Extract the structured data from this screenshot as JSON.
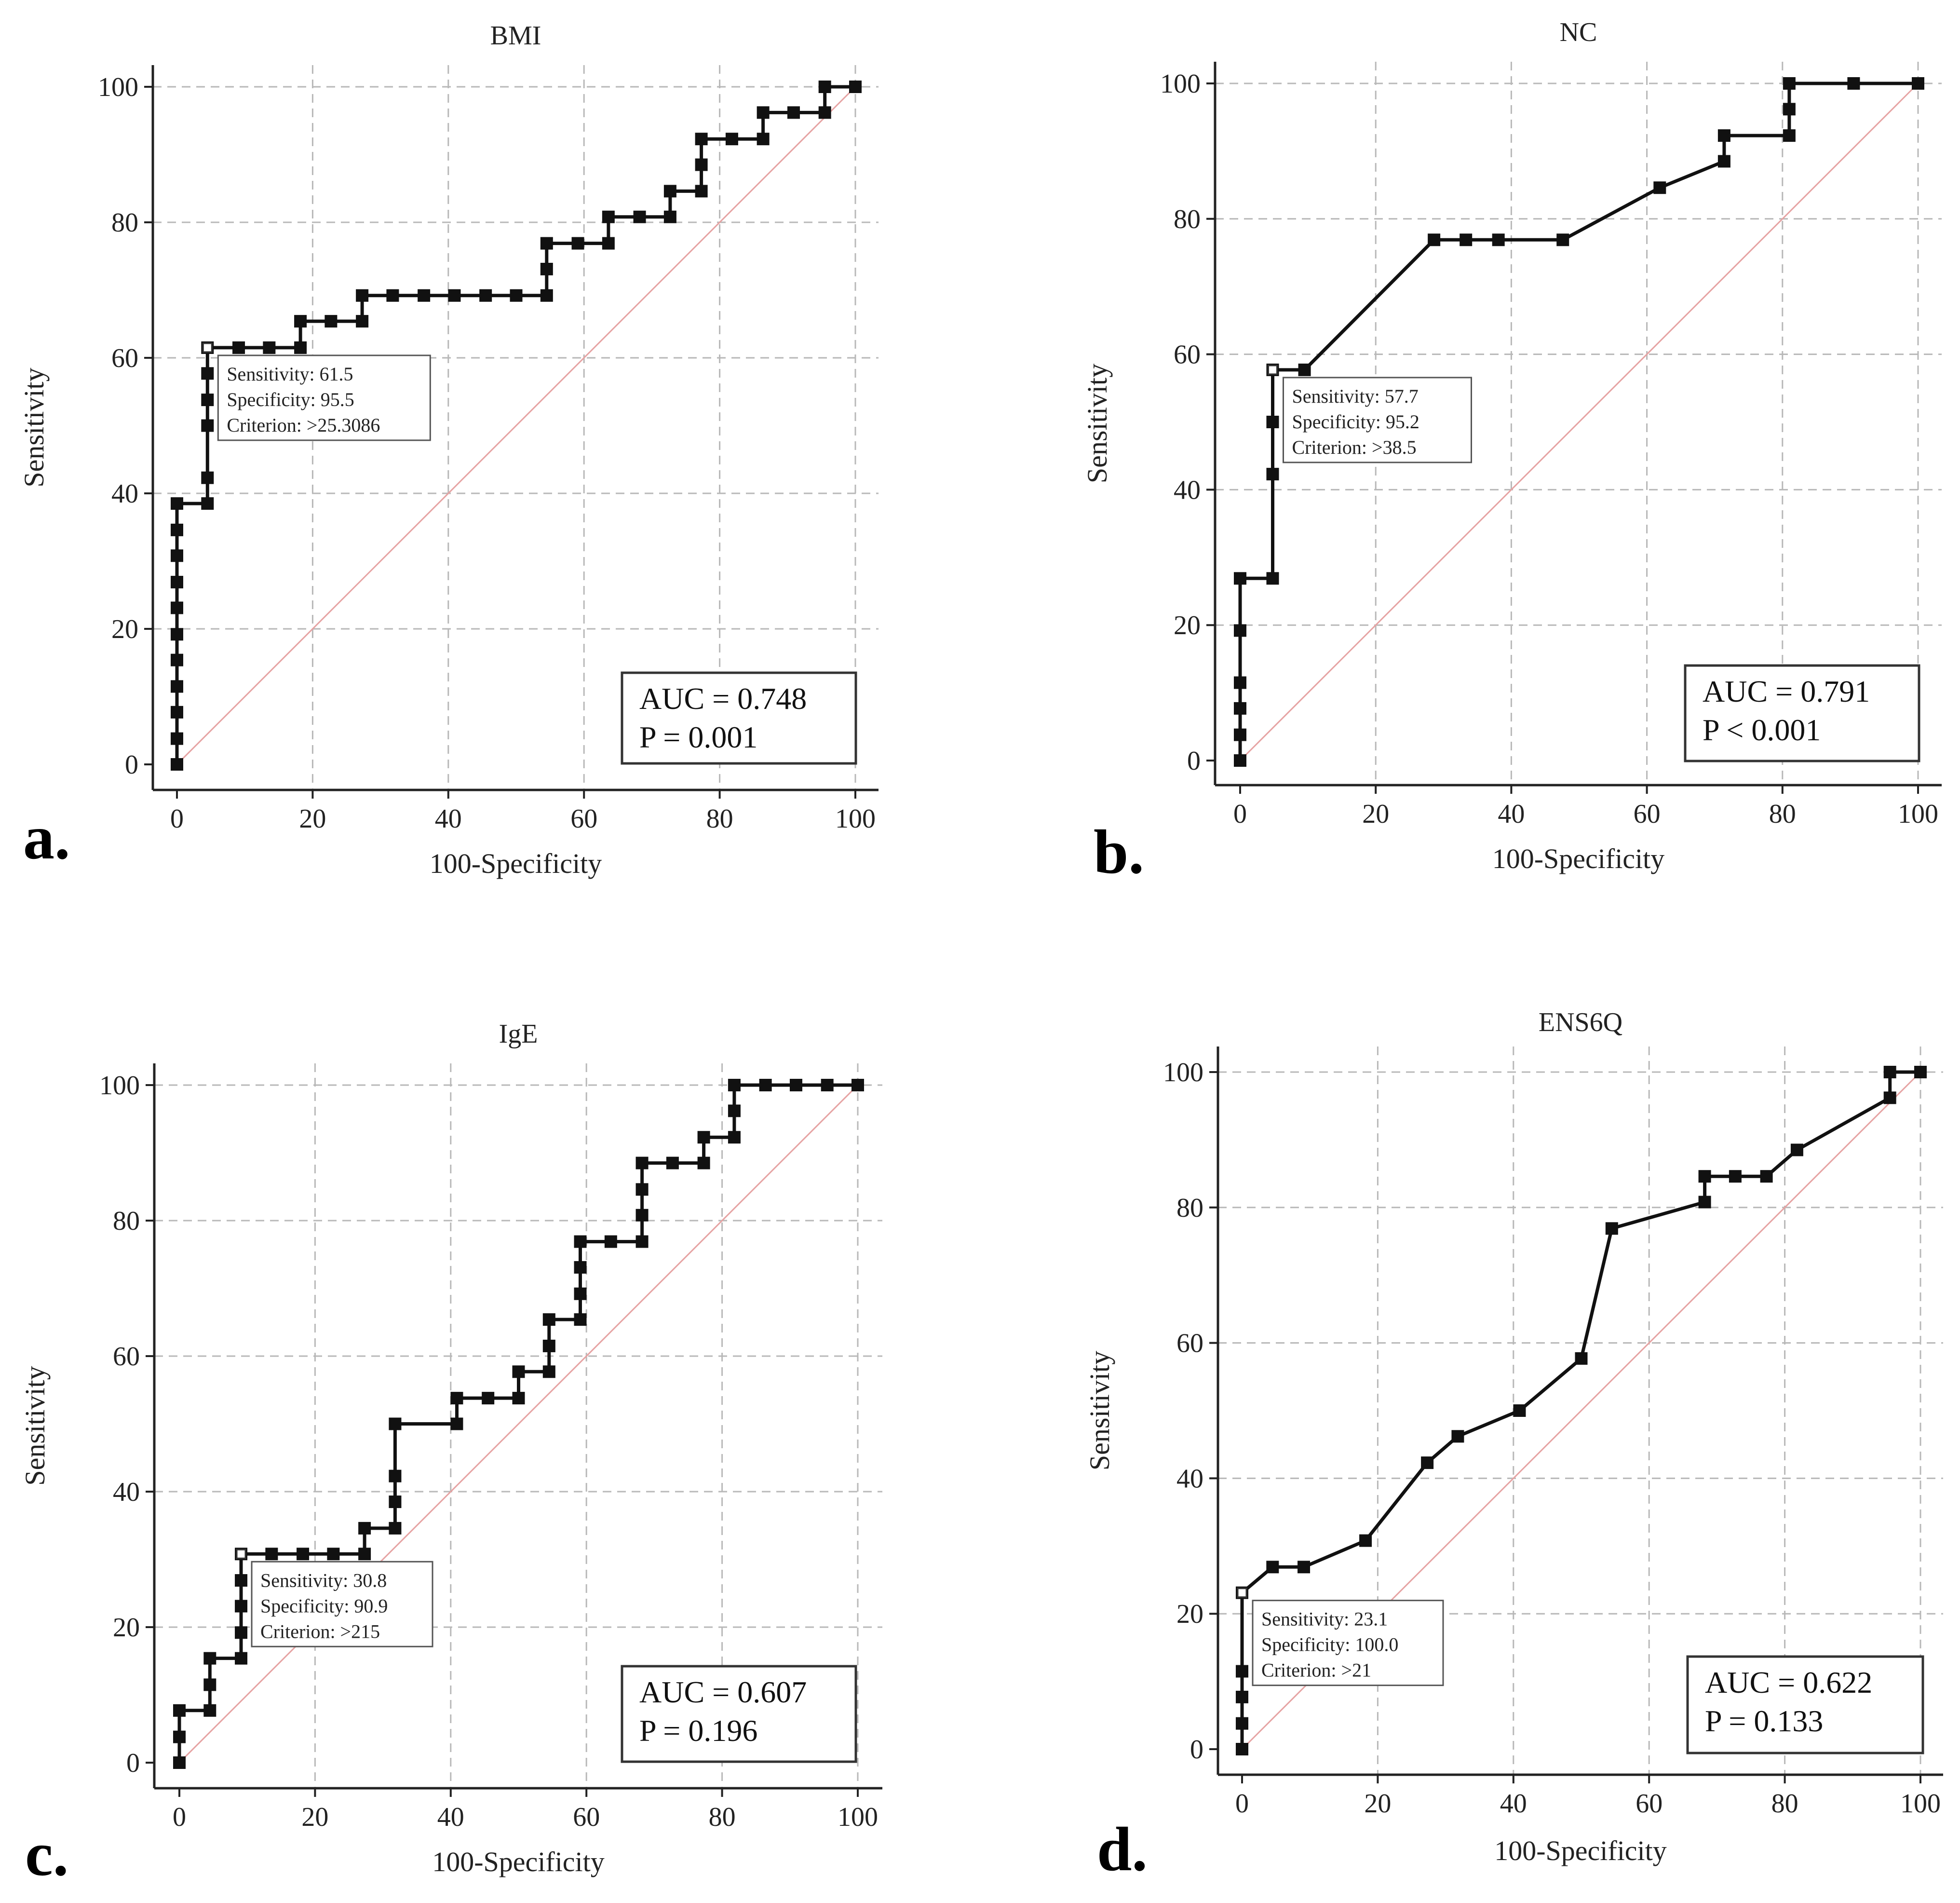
{
  "chart_data": [
    {
      "id": "a",
      "type": "line",
      "panel_label": "a.",
      "title": "BMI",
      "xlabel": "100-Specificity",
      "ylabel": "Sensitivity",
      "xlim": [
        0,
        100
      ],
      "ylim": [
        0,
        100
      ],
      "xticks": [
        0,
        20,
        40,
        60,
        80,
        100
      ],
      "yticks": [
        0,
        20,
        40,
        60,
        80,
        100
      ],
      "grid": true,
      "roc_points": [
        [
          0,
          0
        ],
        [
          0,
          3.8
        ],
        [
          0,
          7.7
        ],
        [
          0,
          11.5
        ],
        [
          0,
          15.4
        ],
        [
          0,
          19.2
        ],
        [
          0,
          23.1
        ],
        [
          0,
          26.9
        ],
        [
          0,
          30.8
        ],
        [
          0,
          34.6
        ],
        [
          0,
          38.5
        ],
        [
          4.5,
          38.5
        ],
        [
          4.5,
          42.3
        ],
        [
          4.5,
          50
        ],
        [
          4.5,
          53.8
        ],
        [
          4.5,
          57.7
        ],
        [
          4.5,
          61.5
        ],
        [
          9.1,
          61.5
        ],
        [
          13.6,
          61.5
        ],
        [
          18.2,
          61.5
        ],
        [
          18.2,
          65.4
        ],
        [
          22.7,
          65.4
        ],
        [
          27.3,
          65.4
        ],
        [
          27.3,
          69.2
        ],
        [
          31.8,
          69.2
        ],
        [
          36.4,
          69.2
        ],
        [
          40.9,
          69.2
        ],
        [
          45.5,
          69.2
        ],
        [
          50,
          69.2
        ],
        [
          54.5,
          69.2
        ],
        [
          54.5,
          73.1
        ],
        [
          54.5,
          76.9
        ],
        [
          59.1,
          76.9
        ],
        [
          63.6,
          76.9
        ],
        [
          63.6,
          80.8
        ],
        [
          68.2,
          80.8
        ],
        [
          72.7,
          80.8
        ],
        [
          72.7,
          84.6
        ],
        [
          77.3,
          84.6
        ],
        [
          77.3,
          88.5
        ],
        [
          77.3,
          92.3
        ],
        [
          81.8,
          92.3
        ],
        [
          86.4,
          92.3
        ],
        [
          86.4,
          96.2
        ],
        [
          90.9,
          96.2
        ],
        [
          95.5,
          96.2
        ],
        [
          95.5,
          100
        ],
        [
          100,
          100
        ]
      ],
      "annotation": {
        "point": [
          4.5,
          61.5
        ],
        "lines": [
          "Sensitivity: 61.5",
          "Specificity: 95.5",
          "Criterion: >25.3086"
        ]
      },
      "stats": [
        "AUC = 0.748",
        "P = 0.001"
      ]
    },
    {
      "id": "b",
      "type": "line",
      "panel_label": "b.",
      "title": "NC",
      "xlabel": "100-Specificity",
      "ylabel": "Sensitivity",
      "xlim": [
        0,
        100
      ],
      "ylim": [
        0,
        100
      ],
      "xticks": [
        0,
        20,
        40,
        60,
        80,
        100
      ],
      "yticks": [
        0,
        20,
        40,
        60,
        80,
        100
      ],
      "grid": true,
      "roc_points": [
        [
          0,
          0
        ],
        [
          0,
          3.8
        ],
        [
          0,
          7.7
        ],
        [
          0,
          11.5
        ],
        [
          0,
          19.2
        ],
        [
          0,
          26.9
        ],
        [
          4.8,
          26.9
        ],
        [
          4.8,
          42.3
        ],
        [
          4.8,
          50
        ],
        [
          4.8,
          57.7
        ],
        [
          9.5,
          57.7
        ],
        [
          28.6,
          76.9
        ],
        [
          33.3,
          76.9
        ],
        [
          38.1,
          76.9
        ],
        [
          47.6,
          76.9
        ],
        [
          61.9,
          84.6
        ],
        [
          71.4,
          88.5
        ],
        [
          71.4,
          92.3
        ],
        [
          81,
          92.3
        ],
        [
          81,
          96.2
        ],
        [
          81,
          100
        ],
        [
          90.5,
          100
        ],
        [
          100,
          100
        ]
      ],
      "annotation": {
        "point": [
          4.8,
          57.7
        ],
        "lines": [
          "Sensitivity: 57.7",
          "Specificity: 95.2",
          "Criterion: >38.5"
        ]
      },
      "stats": [
        "AUC = 0.791",
        "P < 0.001"
      ]
    },
    {
      "id": "c",
      "type": "line",
      "panel_label": "c.",
      "title": "IgE",
      "xlabel": "100-Specificity",
      "ylabel": "Sensitivity",
      "xlim": [
        0,
        100
      ],
      "ylim": [
        0,
        100
      ],
      "xticks": [
        0,
        20,
        40,
        60,
        80,
        100
      ],
      "yticks": [
        0,
        20,
        40,
        60,
        80,
        100
      ],
      "grid": true,
      "roc_points": [
        [
          0,
          0
        ],
        [
          0,
          3.8
        ],
        [
          0,
          7.7
        ],
        [
          4.5,
          7.7
        ],
        [
          4.5,
          11.5
        ],
        [
          4.5,
          15.4
        ],
        [
          9.1,
          15.4
        ],
        [
          9.1,
          19.2
        ],
        [
          9.1,
          23.1
        ],
        [
          9.1,
          26.9
        ],
        [
          9.1,
          30.8
        ],
        [
          13.6,
          30.8
        ],
        [
          18.2,
          30.8
        ],
        [
          22.7,
          30.8
        ],
        [
          27.3,
          30.8
        ],
        [
          27.3,
          34.6
        ],
        [
          31.8,
          34.6
        ],
        [
          31.8,
          38.5
        ],
        [
          31.8,
          42.3
        ],
        [
          31.8,
          50
        ],
        [
          40.9,
          50
        ],
        [
          40.9,
          53.8
        ],
        [
          45.5,
          53.8
        ],
        [
          50,
          53.8
        ],
        [
          50,
          57.7
        ],
        [
          54.5,
          57.7
        ],
        [
          54.5,
          61.5
        ],
        [
          54.5,
          65.4
        ],
        [
          59.1,
          65.4
        ],
        [
          59.1,
          69.2
        ],
        [
          59.1,
          73.1
        ],
        [
          59.1,
          76.9
        ],
        [
          63.6,
          76.9
        ],
        [
          68.2,
          76.9
        ],
        [
          68.2,
          80.8
        ],
        [
          68.2,
          84.6
        ],
        [
          68.2,
          88.5
        ],
        [
          72.7,
          88.5
        ],
        [
          77.3,
          88.5
        ],
        [
          77.3,
          92.3
        ],
        [
          81.8,
          92.3
        ],
        [
          81.8,
          96.2
        ],
        [
          81.8,
          100
        ],
        [
          86.4,
          100
        ],
        [
          90.9,
          100
        ],
        [
          95.5,
          100
        ],
        [
          100,
          100
        ]
      ],
      "annotation": {
        "point": [
          9.1,
          30.8
        ],
        "lines": [
          "Sensitivity: 30.8",
          "Specificity: 90.9",
          "Criterion: >215"
        ]
      },
      "stats": [
        "AUC = 0.607",
        "P = 0.196"
      ]
    },
    {
      "id": "d",
      "type": "line",
      "panel_label": "d.",
      "title": "ENS6Q",
      "xlabel": "100-Specificity",
      "ylabel": "Sensitivity",
      "xlim": [
        0,
        100
      ],
      "ylim": [
        0,
        100
      ],
      "xticks": [
        0,
        20,
        40,
        60,
        80,
        100
      ],
      "yticks": [
        0,
        20,
        40,
        60,
        80,
        100
      ],
      "grid": true,
      "roc_points": [
        [
          0,
          0
        ],
        [
          0,
          3.8
        ],
        [
          0,
          7.7
        ],
        [
          0,
          11.5
        ],
        [
          0,
          23.1
        ],
        [
          4.5,
          26.9
        ],
        [
          9.1,
          26.9
        ],
        [
          18.2,
          30.8
        ],
        [
          27.3,
          42.3
        ],
        [
          31.8,
          46.2
        ],
        [
          40.9,
          50
        ],
        [
          50,
          57.7
        ],
        [
          54.5,
          76.9
        ],
        [
          68.2,
          80.8
        ],
        [
          68.2,
          84.6
        ],
        [
          72.7,
          84.6
        ],
        [
          77.3,
          84.6
        ],
        [
          81.8,
          88.5
        ],
        [
          95.5,
          96.2
        ],
        [
          95.5,
          100
        ],
        [
          100,
          100
        ]
      ],
      "annotation": {
        "point": [
          0,
          23.1
        ],
        "lines": [
          "Sensitivity: 23.1",
          "Specificity: 100.0",
          "Criterion: >21"
        ]
      },
      "stats": [
        "AUC = 0.622",
        "P = 0.133"
      ]
    }
  ]
}
